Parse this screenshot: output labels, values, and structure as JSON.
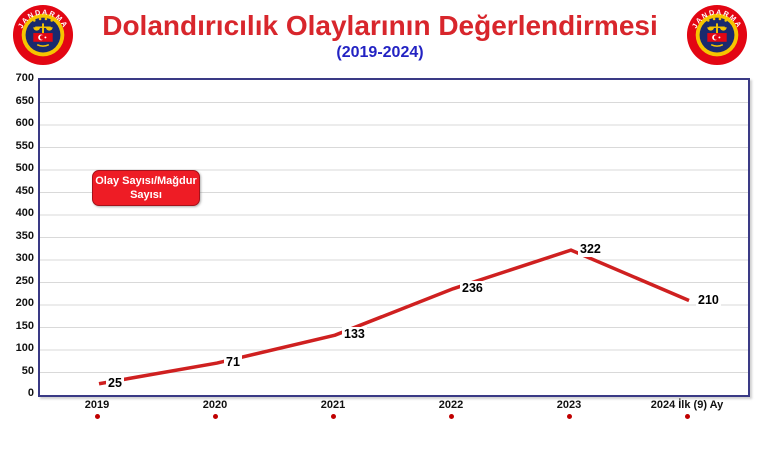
{
  "header": {
    "title": "Dolandırıcılık Olaylarının Değerlendirmesi",
    "subtitle": "(2019-2024)",
    "title_color": "#d8262c",
    "subtitle_color": "#2323c3",
    "logo_text": "JANDARMA"
  },
  "legend": {
    "line1": "Olay Sayısı/Mağdur",
    "line2": "Sayısı",
    "bg_color": "#ee1c25",
    "border_color": "#a5121a",
    "text_color": "#ffffff"
  },
  "chart_data": {
    "type": "line",
    "title": "Dolandırıcılık Olaylarının Değerlendirmesi (2019-2024)",
    "categories": [
      "2019",
      "2020",
      "2021",
      "2022",
      "2023",
      "2024 İlk (9) Ay"
    ],
    "series": [
      {
        "name": "Olay Sayısı/Mağdur Sayısı",
        "values": [
          25,
          71,
          133,
          236,
          322,
          210
        ]
      }
    ],
    "data_labels": [
      "25",
      "71",
      "133",
      "236",
      "322",
      "210"
    ],
    "ylim": [
      0,
      700
    ],
    "yticks": [
      0,
      50,
      100,
      150,
      200,
      250,
      300,
      350,
      400,
      450,
      500,
      550,
      600,
      650,
      700
    ],
    "xlabel": "",
    "ylabel": "",
    "grid": true,
    "legend_position": "top-left",
    "line_color": "#cf2020",
    "category_dot_color": "#c00000",
    "gridline_color": "#d9d9d9",
    "plot_border_color": "#3a3a85"
  }
}
